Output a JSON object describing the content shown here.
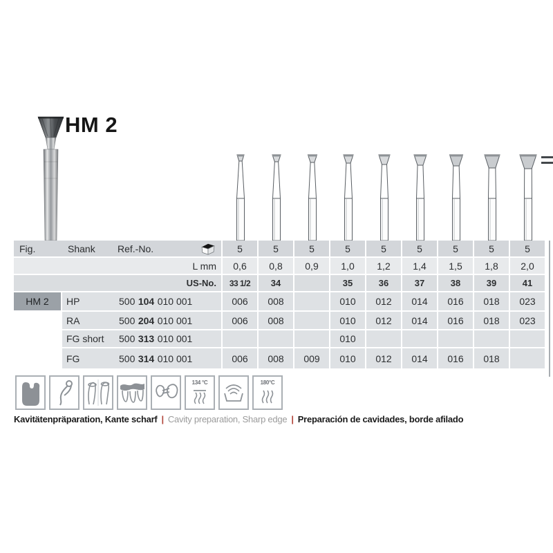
{
  "product": {
    "title": "HM 2"
  },
  "table": {
    "headers": {
      "fig": "Fig.",
      "shank": "Shank",
      "ref": "Ref.-No."
    },
    "pack_qty": [
      "5",
      "5",
      "5",
      "5",
      "5",
      "5",
      "5",
      "5",
      "5"
    ],
    "lmm": {
      "label": "L mm",
      "values": [
        "0,6",
        "0,8",
        "0,9",
        "1,0",
        "1,2",
        "1,4",
        "1,5",
        "1,8",
        "2,0"
      ]
    },
    "usno": {
      "label": "US-No.",
      "values": [
        "33 1/2",
        "34",
        "",
        "35",
        "36",
        "37",
        "38",
        "39",
        "41"
      ]
    },
    "rows": [
      {
        "fig": "HM 2",
        "shank": "HP",
        "ref": [
          "500",
          "104",
          "010 001"
        ],
        "sizes": [
          "006",
          "008",
          "",
          "010",
          "012",
          "014",
          "016",
          "018",
          "023"
        ]
      },
      {
        "fig": "",
        "shank": "RA",
        "ref": [
          "500",
          "204",
          "010 001"
        ],
        "sizes": [
          "006",
          "008",
          "",
          "010",
          "012",
          "014",
          "016",
          "018",
          "023"
        ]
      },
      {
        "fig": "",
        "shank": "FG short",
        "ref": [
          "500",
          "313",
          "010 001"
        ],
        "sizes": [
          "",
          "",
          "",
          "010",
          "",
          "",
          "",
          "",
          ""
        ]
      },
      {
        "fig": "",
        "shank": "FG",
        "ref": [
          "500",
          "314",
          "010 001"
        ],
        "sizes": [
          "006",
          "008",
          "009",
          "010",
          "012",
          "014",
          "016",
          "018",
          ""
        ]
      }
    ]
  },
  "figure_sizes_mm": [
    0.6,
    0.8,
    0.9,
    1.0,
    1.2,
    1.4,
    1.5,
    1.8,
    2.0
  ],
  "pictograms": [
    "cavity-icon",
    "clasp-icon",
    "crowns-icon",
    "bridge-icon",
    "inlay-icon",
    "autoclave-134-icon",
    "thermo-disinfector-icon",
    "dry-heat-180-icon"
  ],
  "sterilization": {
    "autoclave_temp": "134 °C",
    "dry_heat_temp": "180°C"
  },
  "caption": {
    "de": "Kavitätenpräparation, Kante scharf",
    "en": "Cavity preparation, Sharp edge",
    "es": "Preparación de cavidades, borde afilado",
    "separator": "|"
  },
  "colors": {
    "separator_red": "#b2453a",
    "row_gray": "#dee1e4",
    "fig_cell_gray": "#9ba1a7"
  }
}
